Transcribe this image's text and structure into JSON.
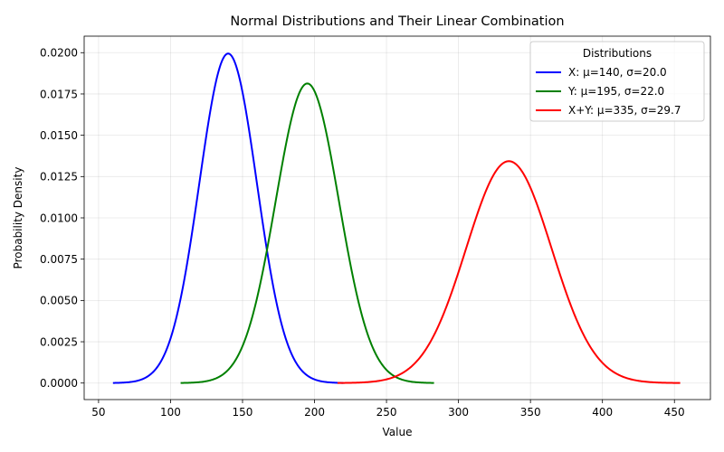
{
  "chart_data": {
    "type": "line",
    "title": "Normal Distributions and Their Linear Combination",
    "xlabel": "Value",
    "ylabel": "Probability Density",
    "xlim": [
      40,
      475
    ],
    "ylim": [
      -0.001,
      0.021
    ],
    "xticks": [
      50,
      100,
      150,
      200,
      250,
      300,
      350,
      400,
      450
    ],
    "xtick_labels": [
      "50",
      "100",
      "150",
      "200",
      "250",
      "300",
      "350",
      "400",
      "450"
    ],
    "yticks": [
      0,
      0.0025,
      0.005,
      0.0075,
      0.01,
      0.0125,
      0.015,
      0.0175,
      0.02
    ],
    "ytick_labels": [
      "0.0000",
      "0.0025",
      "0.0050",
      "0.0075",
      "0.0100",
      "0.0125",
      "0.0150",
      "0.0175",
      "0.0200"
    ],
    "grid": true,
    "legend": {
      "title": "Distributions",
      "placement": "top-right"
    },
    "series": [
      {
        "name": "X: μ=140, σ=20.0",
        "mu": 140,
        "sigma": 20.0,
        "x_range": [
          60,
          220
        ],
        "color": "#0000ff"
      },
      {
        "name": "Y: μ=195, σ=22.0",
        "mu": 195,
        "sigma": 22.0,
        "x_range": [
          107,
          283
        ],
        "color": "#008000"
      },
      {
        "name": "X+Y: μ=335, σ=29.7",
        "mu": 335,
        "sigma": 29.7,
        "x_range": [
          216,
          454
        ],
        "color": "#ff0000"
      }
    ]
  }
}
